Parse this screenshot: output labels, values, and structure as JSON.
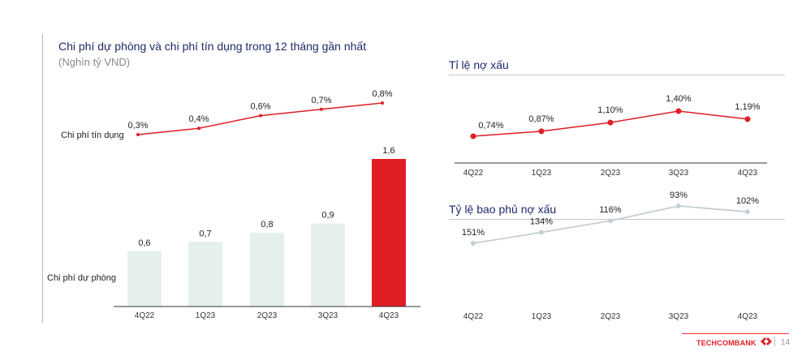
{
  "left_panel": {
    "title": "Chi phí dự phòng và chi phí tín dụng trong 12 tháng gần nhất",
    "subtitle": "(Nghìn tỷ VND)"
  },
  "right_top": {
    "title": "Tỉ lệ nợ xấu"
  },
  "right_bottom": {
    "title": "Tỷ lệ bao phủ nợ xấu"
  },
  "footer": {
    "brand": "TECHCOMBANK",
    "page": "14"
  },
  "colors": {
    "red": "#e01e26",
    "bar_light": "#e4efee",
    "gray_line": "#c3cfd3",
    "title_navy": "#1f2a6b"
  },
  "chart_data": [
    {
      "type": "bar",
      "categories": [
        "4Q22",
        "1Q23",
        "2Q23",
        "3Q23",
        "4Q23"
      ],
      "series": [
        {
          "name": "Chi phí dự phòng",
          "values": [
            0.6,
            0.7,
            0.8,
            0.9,
            1.6
          ]
        }
      ],
      "data_labels": [
        "0,6",
        "0,7",
        "0,8",
        "0,9",
        "1,6"
      ],
      "highlight_index": 4
    },
    {
      "type": "line",
      "categories": [
        "4Q22",
        "1Q23",
        "2Q23",
        "3Q23",
        "4Q23"
      ],
      "series": [
        {
          "name": "Chi phí tín dụng",
          "values": [
            0.3,
            0.4,
            0.6,
            0.7,
            0.8
          ]
        }
      ],
      "data_labels": [
        "0,3%",
        "0,4%",
        "0,6%",
        "0,7%",
        "0,8%"
      ]
    },
    {
      "type": "line",
      "categories": [
        "4Q22",
        "1Q23",
        "2Q23",
        "3Q23",
        "4Q23"
      ],
      "series": [
        {
          "values": [
            0.74,
            0.87,
            1.1,
            1.4,
            1.19
          ]
        }
      ],
      "data_labels": [
        "0,74%",
        "0,87%",
        "1,10%",
        "1,40%",
        "1,19%"
      ]
    },
    {
      "type": "line",
      "categories": [
        "4Q22",
        "1Q23",
        "2Q23",
        "3Q23",
        "4Q23"
      ],
      "series": [
        {
          "values": [
            151,
            134,
            116,
            93,
            102
          ]
        }
      ],
      "data_labels": [
        "151%",
        "134%",
        "116%",
        "93%",
        "102%"
      ]
    }
  ]
}
